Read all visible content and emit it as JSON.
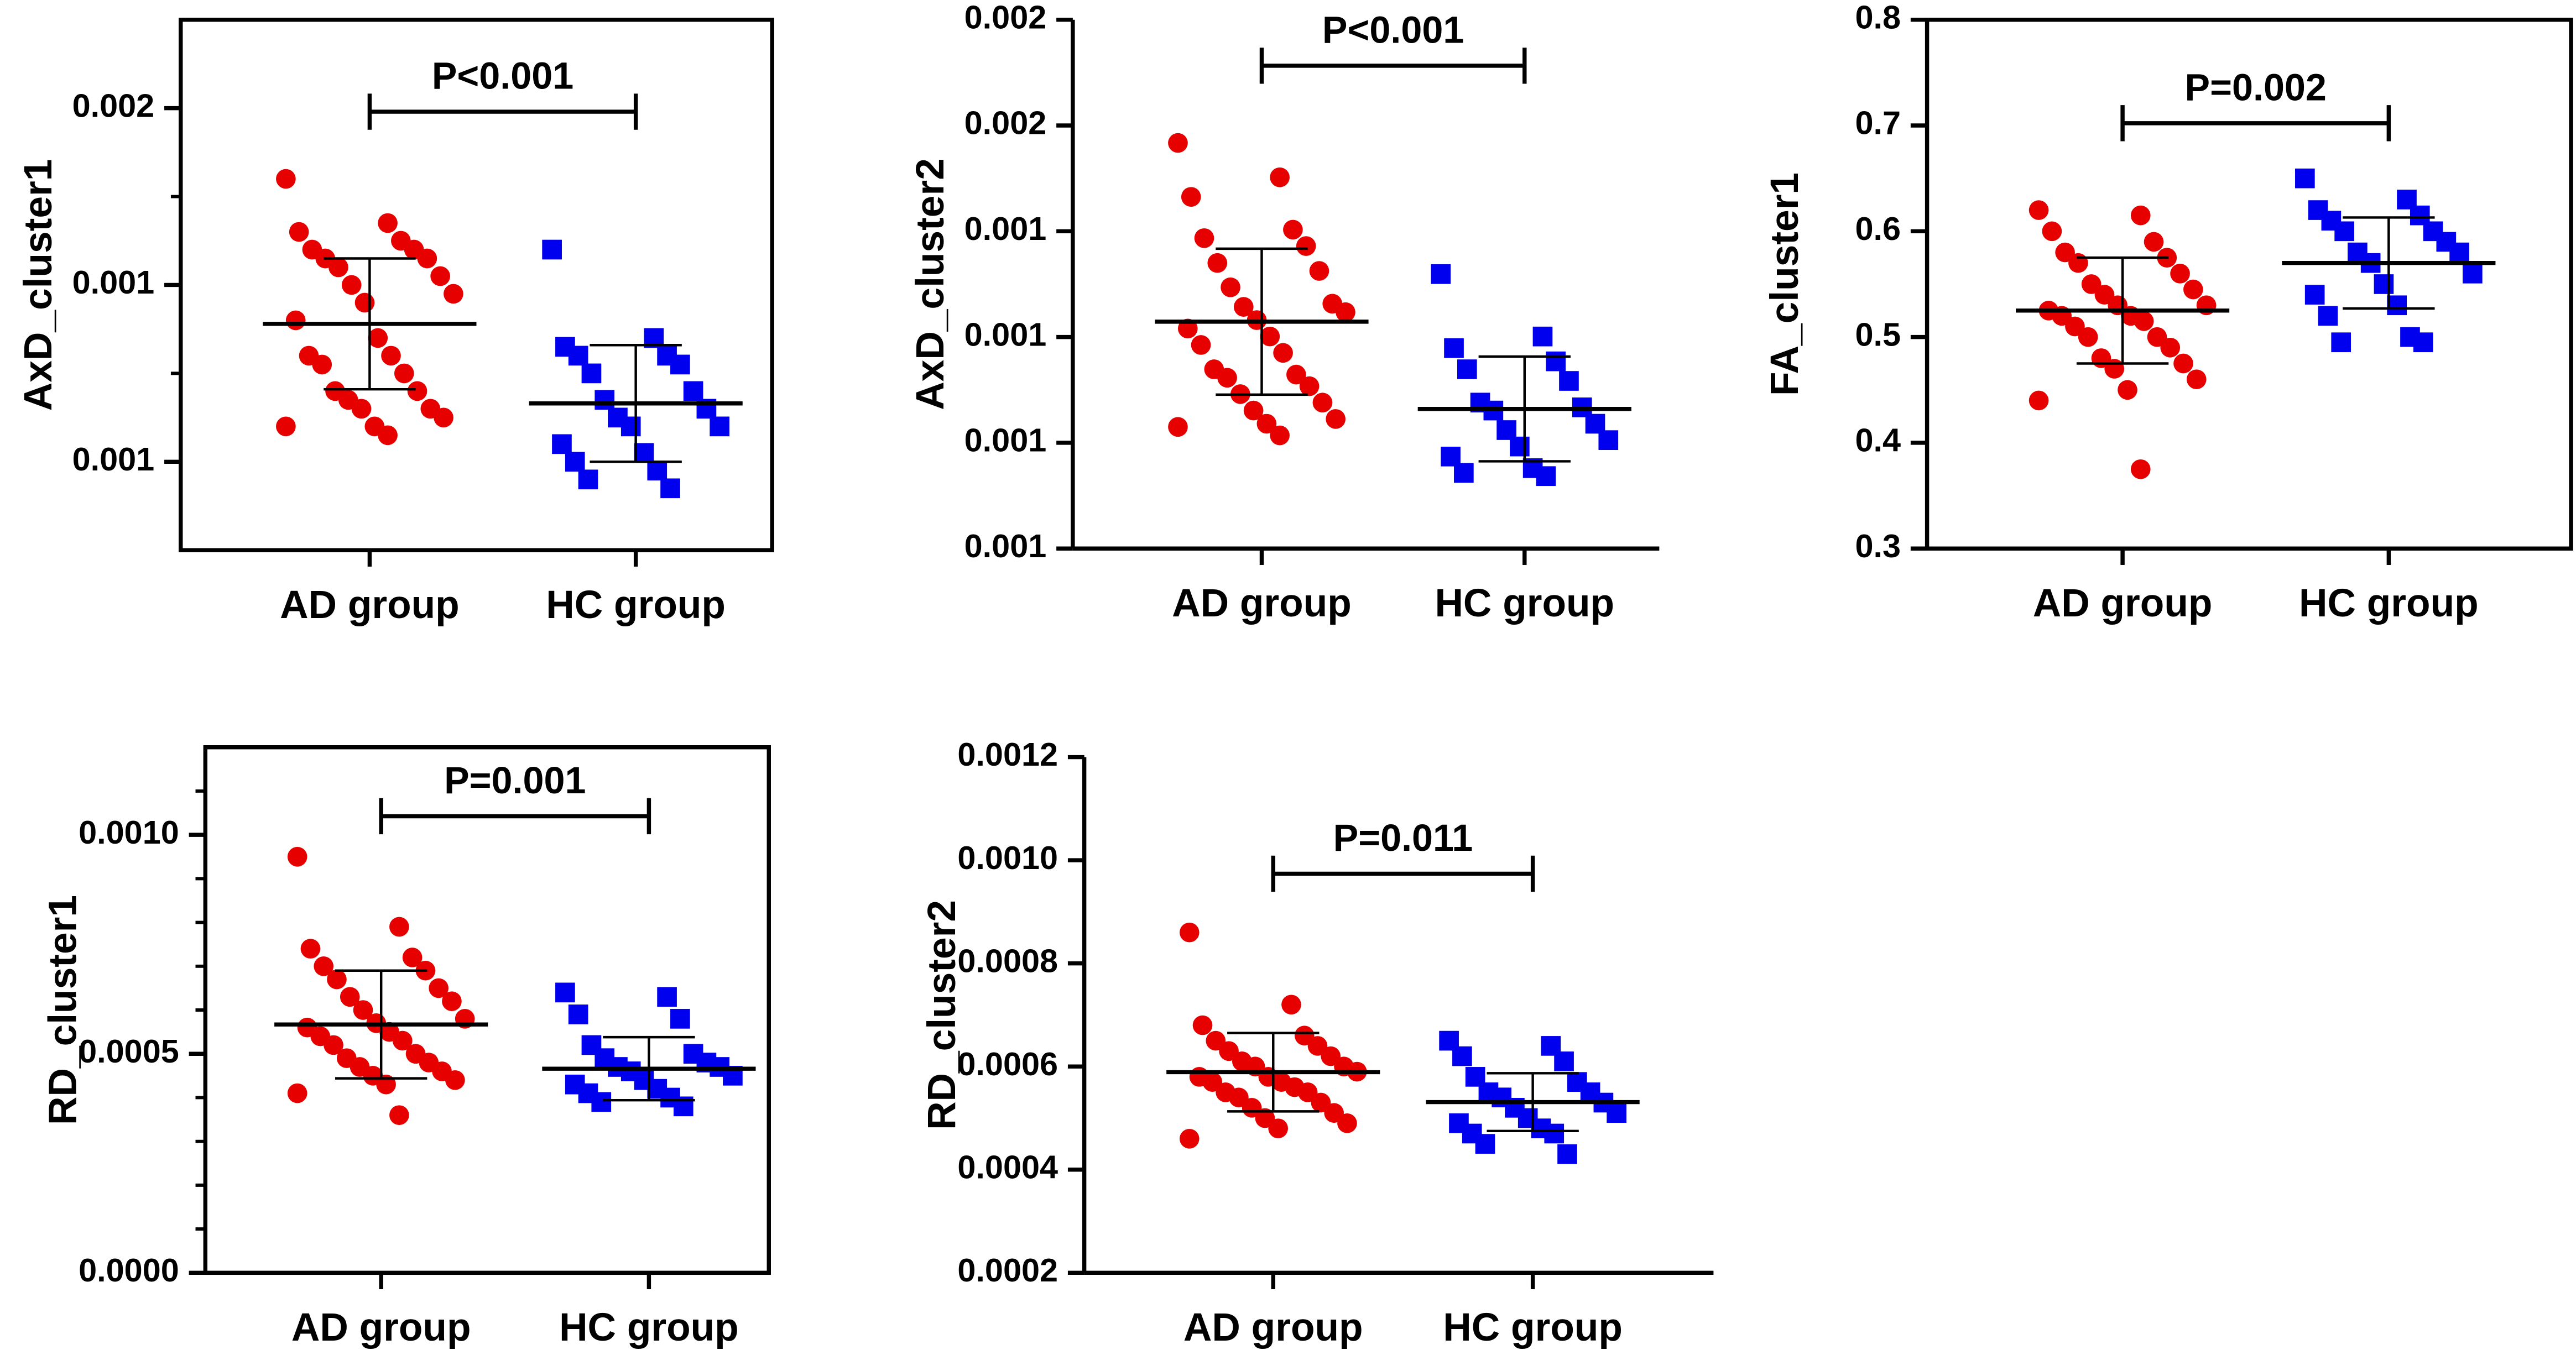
{
  "chart_data": [
    {
      "type": "dot",
      "ylabel": "AxD_cluster1",
      "frame": true,
      "ylim": [
        0.0011,
        0.0017
      ],
      "yticks": [
        {
          "value": 0.0012,
          "label": "0.001"
        },
        {
          "value": 0.0014,
          "label": "0.001"
        },
        {
          "value": 0.0016,
          "label": "0.002"
        }
      ],
      "yminor": [
        0.0013,
        0.0015
      ],
      "annotation": "P<0.001",
      "groups": [
        {
          "name": "AD group",
          "color": "#e60000",
          "marker": "circle",
          "mean": 0.001356,
          "sd": 7.4e-05,
          "values": [
            0.00152,
            0.00147,
            0.00146,
            0.00145,
            0.00144,
            0.00144,
            0.00143,
            0.00143,
            0.00142,
            0.00141,
            0.0014,
            0.00139,
            0.00138,
            0.00136,
            0.00134,
            0.00132,
            0.00132,
            0.00131,
            0.0013,
            0.00128,
            0.00128,
            0.00127,
            0.00126,
            0.00126,
            0.00125,
            0.00124,
            0.00124,
            0.00123
          ]
        },
        {
          "name": "HC group",
          "color": "#0000ee",
          "marker": "square",
          "mean": 0.001266,
          "sd": 6.6e-05,
          "values": [
            0.00144,
            0.00134,
            0.00133,
            0.00132,
            0.00132,
            0.00131,
            0.0013,
            0.00128,
            0.00127,
            0.00126,
            0.00125,
            0.00124,
            0.00124,
            0.00122,
            0.00121,
            0.0012,
            0.00119,
            0.00118,
            0.00117
          ]
        }
      ]
    },
    {
      "type": "dot",
      "ylabel": "AxD_cluster2",
      "frame": false,
      "ylim": [
        0.0008,
        0.0018
      ],
      "yticks": [
        {
          "value": 0.0008,
          "label": "0.001"
        },
        {
          "value": 0.001,
          "label": "0.001"
        },
        {
          "value": 0.0012,
          "label": "0.001"
        },
        {
          "value": 0.0014,
          "label": "0.001"
        },
        {
          "value": 0.0016,
          "label": "0.002"
        },
        {
          "value": 0.0018,
          "label": "0.002"
        }
      ],
      "annotation": "P<0.001",
      "groups": [
        {
          "name": "AD group",
          "color": "#e60000",
          "marker": "circle",
          "mean": 0.001229,
          "sd": 0.000138,
          "values": [
            0.001567,
            0.001502,
            0.001465,
            0.001403,
            0.001387,
            0.001372,
            0.00134,
            0.001325,
            0.001294,
            0.001263,
            0.001257,
            0.001247,
            0.001232,
            0.001216,
            0.001201,
            0.001185,
            0.00117,
            0.001139,
            0.001129,
            0.001123,
            0.001107,
            0.001092,
            0.001076,
            0.001061,
            0.001045,
            0.001036,
            0.00103,
            0.001014
          ]
        },
        {
          "name": "HC group",
          "color": "#0000ee",
          "marker": "square",
          "mean": 0.001064,
          "sd": 9.9e-05,
          "values": [
            0.001319,
            0.001201,
            0.001179,
            0.001154,
            0.001139,
            0.001117,
            0.001076,
            0.001067,
            0.001061,
            0.001036,
            0.001024,
            0.001005,
            0.000993,
            0.000974,
            0.000952,
            0.000943,
            0.000937
          ]
        }
      ]
    },
    {
      "type": "dot",
      "ylabel": "FA_cluster1",
      "frame": true,
      "ylim": [
        0.3,
        0.8
      ],
      "yticks": [
        0.3,
        0.4,
        0.5,
        0.6,
        0.7,
        0.8
      ],
      "annotation": "P=0.002",
      "groups": [
        {
          "name": "AD group",
          "color": "#e60000",
          "marker": "circle",
          "mean": 0.525,
          "sd": 0.05,
          "values": [
            0.62,
            0.615,
            0.6,
            0.59,
            0.58,
            0.575,
            0.57,
            0.56,
            0.55,
            0.545,
            0.54,
            0.53,
            0.53,
            0.525,
            0.52,
            0.52,
            0.515,
            0.51,
            0.5,
            0.5,
            0.49,
            0.48,
            0.475,
            0.47,
            0.46,
            0.45,
            0.44,
            0.375
          ]
        },
        {
          "name": "HC group",
          "color": "#0000ee",
          "marker": "square",
          "mean": 0.57,
          "sd": 0.043,
          "values": [
            0.65,
            0.63,
            0.62,
            0.615,
            0.61,
            0.6,
            0.6,
            0.59,
            0.58,
            0.58,
            0.57,
            0.56,
            0.55,
            0.54,
            0.53,
            0.52,
            0.5,
            0.495,
            0.495
          ]
        }
      ]
    },
    {
      "type": "dot",
      "ylabel": "RD_cluster1",
      "frame": true,
      "ylim": [
        0,
        0.0012
      ],
      "yticks": [
        {
          "value": 0,
          "label": "0.0000"
        },
        0.0005,
        {
          "value": 0.001,
          "label": "0.0010"
        }
      ],
      "yminor": [
        0.0001,
        0.0002,
        0.0003,
        0.0004,
        0.0006,
        0.0007,
        0.0008,
        0.0009,
        0.0011
      ],
      "annotation": "P=0.001",
      "groups": [
        {
          "name": "AD group",
          "color": "#e60000",
          "marker": "circle",
          "mean": 0.000567,
          "sd": 0.000123,
          "values": [
            0.00095,
            0.00079,
            0.00074,
            0.00072,
            0.0007,
            0.00069,
            0.00067,
            0.00065,
            0.00063,
            0.00062,
            0.0006,
            0.00058,
            0.00057,
            0.00056,
            0.00055,
            0.00054,
            0.00053,
            0.00052,
            0.0005,
            0.00049,
            0.00048,
            0.00047,
            0.00046,
            0.00045,
            0.00044,
            0.00043,
            0.00041,
            0.00036
          ]
        },
        {
          "name": "HC group",
          "color": "#0000ee",
          "marker": "square",
          "mean": 0.000466,
          "sd": 7.2e-05,
          "values": [
            0.00064,
            0.00063,
            0.00059,
            0.00058,
            0.00052,
            0.0005,
            0.00049,
            0.00048,
            0.00047,
            0.00047,
            0.00046,
            0.00045,
            0.00044,
            0.00043,
            0.00042,
            0.00041,
            0.0004,
            0.00039,
            0.00038
          ]
        }
      ]
    },
    {
      "type": "dot",
      "ylabel": "RD_cluster2",
      "frame": false,
      "ylim": [
        0.0002,
        0.0012
      ],
      "yticks": [
        0.0002,
        0.0004,
        0.0006,
        0.0008,
        {
          "value": 0.001,
          "label": "0.0010"
        },
        0.0012
      ],
      "annotation": "P=0.011",
      "groups": [
        {
          "name": "AD group",
          "color": "#e60000",
          "marker": "circle",
          "mean": 0.000589,
          "sd": 7.6e-05,
          "values": [
            0.00086,
            0.00072,
            0.00068,
            0.00066,
            0.00065,
            0.00064,
            0.00063,
            0.00062,
            0.00061,
            0.0006,
            0.0006,
            0.00059,
            0.00058,
            0.00058,
            0.00057,
            0.00057,
            0.00056,
            0.00055,
            0.00055,
            0.00054,
            0.00053,
            0.00052,
            0.00051,
            0.0005,
            0.00049,
            0.00048,
            0.00046
          ]
        },
        {
          "name": "HC group",
          "color": "#0000ee",
          "marker": "square",
          "mean": 0.000531,
          "sd": 5.6e-05,
          "values": [
            0.00065,
            0.00064,
            0.00062,
            0.00061,
            0.00058,
            0.00057,
            0.00055,
            0.00055,
            0.00054,
            0.00053,
            0.00052,
            0.00051,
            0.0005,
            0.00049,
            0.00048,
            0.00047,
            0.00047,
            0.00045,
            0.00043
          ]
        }
      ]
    }
  ]
}
